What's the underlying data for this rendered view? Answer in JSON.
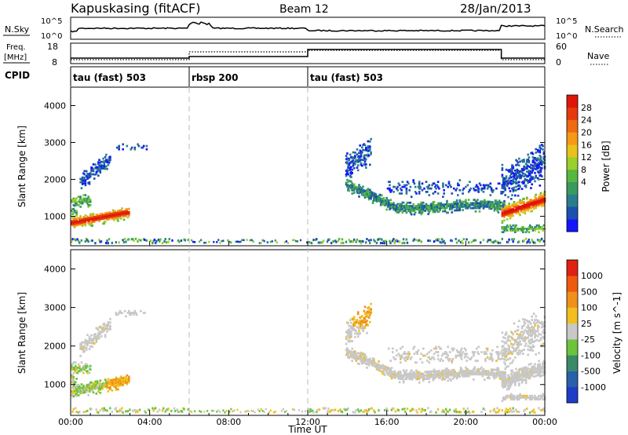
{
  "header": {
    "station": "Kapuskasing (fitACF)",
    "beam": "Beam 12",
    "date": "28/Jan/2013"
  },
  "noise_panel": {
    "left_label": "N.Sky",
    "right_label": "N.Search",
    "left_ticks": [
      "10^5",
      "10^0"
    ],
    "right_ticks": [
      "10^5",
      "10^0"
    ]
  },
  "freq_panel": {
    "left_label_1": "Freq.",
    "left_label_2": "[MHz]",
    "right_label": "Nave",
    "left_ticks": [
      "18",
      "8"
    ],
    "right_ticks": [
      "60",
      "0"
    ]
  },
  "cpid_panel": {
    "label": "CPID",
    "segments": [
      {
        "label": "tau (fast) 503",
        "start_hour": 0,
        "end_hour": 6
      },
      {
        "label": "rbsp 200",
        "start_hour": 6,
        "end_hour": 12
      },
      {
        "label": "tau (fast) 503",
        "start_hour": 12,
        "end_hour": 24
      }
    ]
  },
  "chart_data": [
    {
      "type": "heatmap",
      "name": "power",
      "ylabel": "Slant Range [km]",
      "ylim": [
        200,
        4500
      ],
      "yticks": [
        "1000",
        "2000",
        "3000",
        "4000"
      ],
      "colorbar_label": "Power [dB]",
      "colorbar_ticks": [
        "28",
        "24",
        "20",
        "16",
        "12",
        "8",
        "4"
      ],
      "colorbar_colors": [
        "#1414ff",
        "#1c4fb0",
        "#2a7c8f",
        "#3a9a5f",
        "#56b83e",
        "#9bcf2c",
        "#e8c21a",
        "#f59a16",
        "#f06a10",
        "#e63a0c",
        "#e0150a"
      ]
    },
    {
      "type": "heatmap",
      "name": "velocity",
      "ylabel": "Slant Range [km]",
      "ylim": [
        200,
        4500
      ],
      "yticks": [
        "1000",
        "2000",
        "3000",
        "4000"
      ],
      "colorbar_label": "Velocity [m s^-1]",
      "colorbar_ticks": [
        "1000",
        "500",
        "100",
        "25",
        "-25",
        "-100",
        "-500",
        "-1000"
      ],
      "colorbar_colors": [
        "#1e3cc8",
        "#2a5faa",
        "#3a8a6a",
        "#6cc43c",
        "#c8c8c8",
        "#f0c020",
        "#f0901a",
        "#f05a10",
        "#e02010"
      ]
    }
  ],
  "x_axis": {
    "label": "Time UT",
    "ticks": [
      "00:00",
      "04:00",
      "08:00",
      "12:00",
      "16:00",
      "20:00",
      "00:00"
    ]
  }
}
